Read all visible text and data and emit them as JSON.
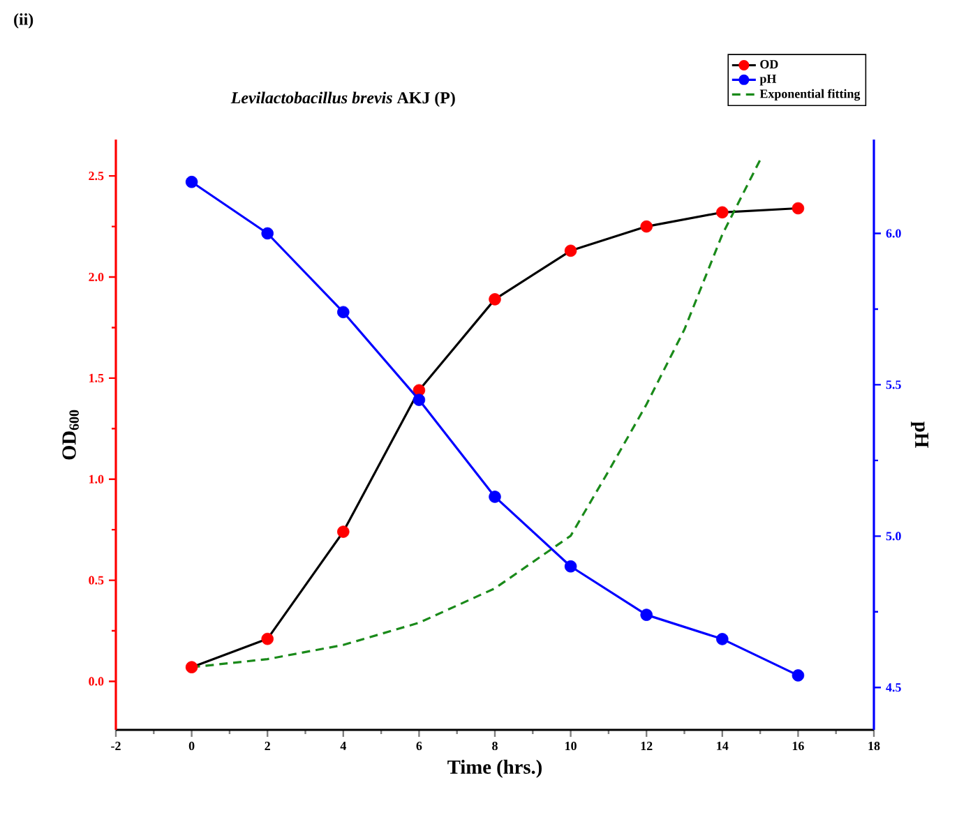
{
  "chart_data": {
    "type": "line",
    "title": "*Levilactobacillus brevis* AKJ (P)",
    "xlabel": "Time (hrs.)",
    "ylabel": "OD$_{600}$",
    "y2label": "pH",
    "annotations": [
      "(ii)"
    ],
    "xlim": [
      -2,
      18
    ],
    "xticks": [
      -2,
      0,
      2,
      4,
      6,
      8,
      10,
      12,
      14,
      16,
      18
    ],
    "ylim": [
      -0.24,
      2.68
    ],
    "yticks": [
      {
        "value": 0,
        "label": "0.0"
      },
      {
        "value": 0.5,
        "label": "0.5"
      },
      {
        "value": 1,
        "label": "1.0"
      },
      {
        "value": 1.5,
        "label": "1.5"
      },
      {
        "value": 2,
        "label": "2.0"
      },
      {
        "value": 2.5,
        "label": "2.5"
      }
    ],
    "y2lim": [
      4.36,
      6.31
    ],
    "y2ticks": [
      4.5,
      {
        "value": 5,
        "label": "5.0"
      },
      5.5,
      {
        "value": 6,
        "label": "6.0"
      }
    ],
    "legend": "top right",
    "marker": "circle",
    "series": [
      {
        "name": "OD",
        "color": "#000000",
        "colors": [
          "#ff0000",
          "#ff0000",
          "#ff0000",
          "#ff0000",
          "#ff0000",
          "#ff0000",
          "#ff0000",
          "#ff0000",
          "#ff0000"
        ],
        "x": [
          0,
          2,
          4,
          6,
          8,
          10,
          12,
          14,
          16
        ],
        "values": [
          0.07,
          0.21,
          0.74,
          1.44,
          1.89,
          2.13,
          2.25,
          2.32,
          2.34
        ]
      },
      {
        "name": "pH",
        "axis": "y2",
        "color": "#0000ff",
        "colors": [
          "#0000ff",
          "#0000ff",
          "#0000ff",
          "#0000ff",
          "#0000ff",
          "#0000ff",
          "#0000ff",
          "#0000ff",
          "#0000ff"
        ],
        "x": [
          0,
          2,
          4,
          6,
          8,
          10,
          12,
          14,
          16
        ],
        "values": [
          6.17,
          6.0,
          5.74,
          5.45,
          5.13,
          4.9,
          4.74,
          4.66,
          4.54
        ]
      },
      {
        "name": "Exponential fitting",
        "color": "#1a8a1a",
        "marker": "none",
        "line_style": "dashed",
        "x": [
          0,
          2,
          4,
          6,
          8,
          10,
          11,
          12,
          13,
          14,
          15
        ],
        "values": [
          0.07,
          0.11,
          0.18,
          0.29,
          0.46,
          0.72,
          1.04,
          1.37,
          1.74,
          2.21,
          2.58
        ]
      }
    ]
  }
}
